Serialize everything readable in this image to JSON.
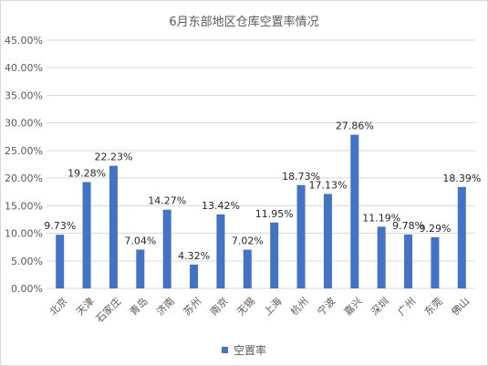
{
  "chart_data": {
    "type": "bar",
    "title": "6月东部地区仓库空置率情况",
    "categories": [
      "北京",
      "天津",
      "石家庄",
      "青岛",
      "济南",
      "苏州",
      "南京",
      "无锡",
      "上海",
      "杭州",
      "宁波",
      "嘉兴",
      "深圳",
      "广州",
      "东莞",
      "佛山"
    ],
    "series": [
      {
        "name": "空置率",
        "values": [
          9.73,
          19.28,
          22.23,
          7.04,
          14.27,
          4.32,
          13.42,
          7.02,
          11.95,
          18.73,
          17.13,
          27.86,
          11.19,
          9.78,
          9.29,
          18.39
        ],
        "data_labels": [
          "9.73%",
          "19.28%",
          "22.23%",
          "7.04%",
          "14.27%",
          "4.32%",
          "13.42%",
          "7.02%",
          "11.95%",
          "18.73%",
          "17.13%",
          "27.86%",
          "11.19%",
          "9.78%",
          "9.29%",
          "18.39%"
        ],
        "color": "#4472c4"
      }
    ],
    "ylim": [
      0,
      45
    ],
    "yticks": [
      0,
      5,
      10,
      15,
      20,
      25,
      30,
      35,
      40,
      45
    ],
    "ytick_labels": [
      "0.00%",
      "5.00%",
      "10.00%",
      "15.00%",
      "20.00%",
      "25.00%",
      "30.00%",
      "35.00%",
      "40.00%",
      "45.00%"
    ],
    "grid": true,
    "grid_color": "#d9d9d9",
    "text_color": "#595959",
    "legend_position": "bottom"
  }
}
